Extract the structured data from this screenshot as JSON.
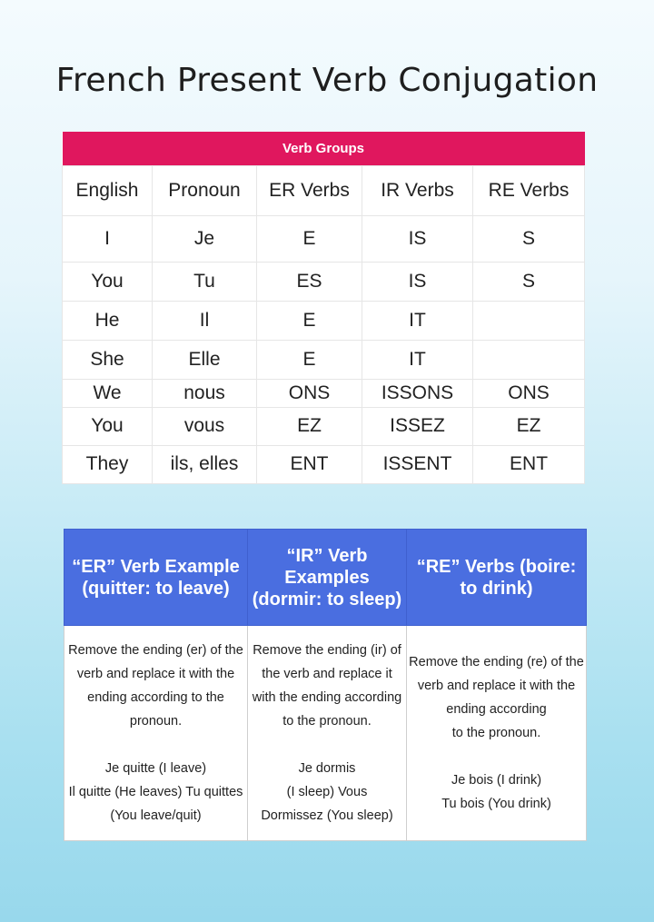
{
  "title": "French Present Verb Conjugation",
  "conjugation_table": {
    "group_header": "Verb Groups",
    "columns": [
      "English",
      "Pronoun",
      "ER Verbs",
      "IR Verbs",
      "RE Verbs"
    ],
    "rows": [
      [
        "I",
        "Je",
        "E",
        "IS",
        "S"
      ],
      [
        "You",
        "Tu",
        "ES",
        "IS",
        "S"
      ],
      [
        "He",
        "Il",
        "E",
        "IT",
        ""
      ],
      [
        "She",
        "Elle",
        "E",
        "IT",
        ""
      ],
      [
        "We",
        "nous",
        "ONS",
        "ISSONS",
        "ONS"
      ],
      [
        "You",
        "vous",
        "EZ",
        "ISSEZ",
        "EZ"
      ],
      [
        "They",
        "ils, elles",
        "ENT",
        "ISSENT",
        "ENT"
      ]
    ]
  },
  "examples_table": {
    "headers": [
      "“ER” Verb Example (quitter: to leave)",
      "“IR” Verb Examples (dormir: to sleep)",
      "“RE” Verbs (boire: to drink)"
    ],
    "cells": [
      "Remove the ending (er) of the verb and replace it with the ending according to the pronoun.\n\nJe quitte (I leave)\nIl quitte (He leaves) Tu quittes (You leave/quit)",
      "Remove the ending (ir) of the verb and replace it with the ending according to the pronoun.\n\nJe dormis\n(I sleep) Vous\nDormissez (You sleep)",
      "Remove the ending (re) of the verb and replace it with the  ending according\nto the pronoun.\n\nJe bois (I drink)\nTu bois (You drink)"
    ]
  },
  "colors": {
    "group_header": "#e0175e",
    "example_header": "#4a6ee0"
  }
}
